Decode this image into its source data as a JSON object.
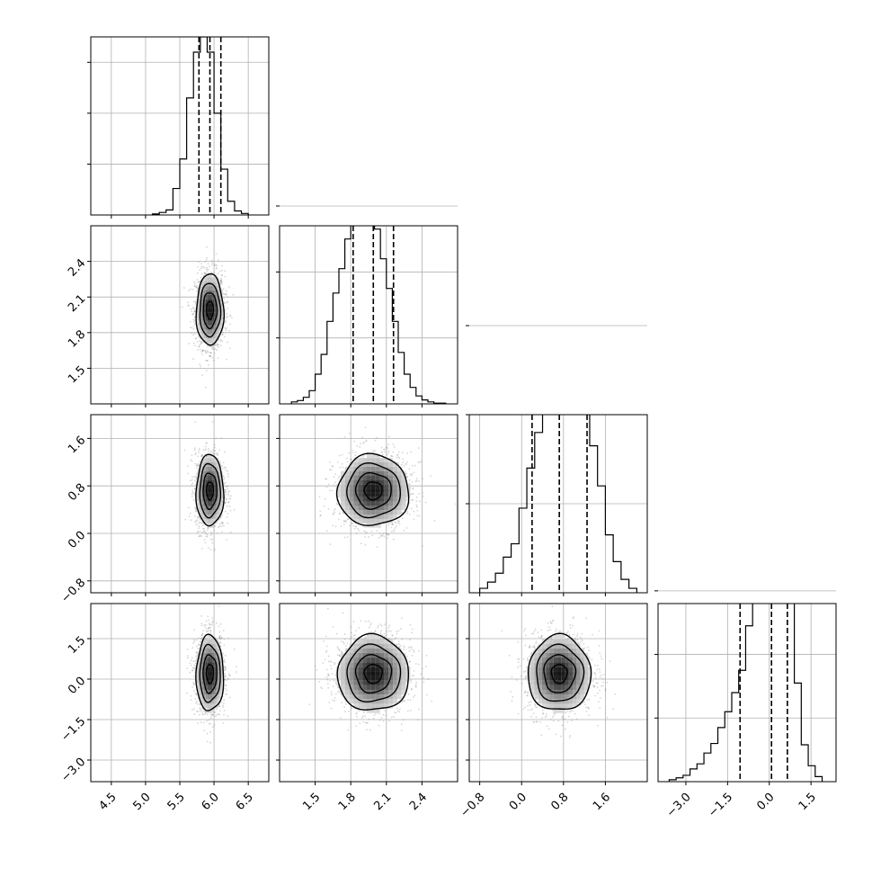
{
  "chart_data": {
    "type": "corner",
    "parameters": [
      {
        "xlim": [
          4.2,
          6.8
        ],
        "ylim": [
          0,
          3.5
        ],
        "ticks": [
          4.5,
          5.0,
          5.5,
          6.0,
          6.5
        ],
        "tick_labels": [
          "4.5",
          "5.0",
          "5.5",
          "6.0",
          "6.5"
        ],
        "hist_yticks": [
          1,
          2,
          3
        ],
        "quantiles": [
          5.78,
          5.94,
          6.1
        ],
        "hist": {
          "edges": [
            5.1,
            5.2,
            5.3,
            5.4,
            5.5,
            5.6,
            5.7,
            5.8,
            5.9,
            6.0,
            6.1,
            6.2,
            6.3,
            6.4,
            6.5
          ],
          "counts": [
            0.02,
            0.05,
            0.1,
            0.52,
            1.1,
            2.3,
            3.2,
            3.5,
            3.2,
            2.0,
            0.9,
            0.27,
            0.08,
            0.03
          ]
        }
      },
      {
        "xlim": [
          1.2,
          2.7
        ],
        "ylim": [
          1.2,
          2.7
        ],
        "ticks": [
          1.5,
          1.8,
          2.1,
          2.4
        ],
        "tick_labels": [
          "1.5",
          "1.8",
          "2.1",
          "2.4"
        ],
        "hist_yticks": [
          1,
          2,
          3
        ],
        "quantiles": [
          1.82,
          1.99,
          2.16
        ],
        "hist": {
          "edges": [
            1.3,
            1.35,
            1.4,
            1.45,
            1.5,
            1.55,
            1.6,
            1.65,
            1.7,
            1.75,
            1.8,
            1.85,
            1.9,
            1.95,
            2.0,
            2.05,
            2.1,
            2.15,
            2.2,
            2.25,
            2.3,
            2.35,
            2.4,
            2.45,
            2.5,
            2.55,
            2.6
          ],
          "counts": [
            0.03,
            0.05,
            0.1,
            0.2,
            0.45,
            0.75,
            1.25,
            1.68,
            2.05,
            2.5,
            2.95,
            3.05,
            3.2,
            2.95,
            2.65,
            2.2,
            1.75,
            1.25,
            0.78,
            0.45,
            0.25,
            0.12,
            0.06,
            0.03,
            0.01,
            0.01
          ]
        }
      },
      {
        "xlim": [
          -1.0,
          2.4
        ],
        "ylim": [
          -1.0,
          2.0
        ],
        "ticks": [
          -0.8,
          0.0,
          0.8,
          1.6
        ],
        "tick_labels": [
          "−0.8",
          "0.0",
          "0.8",
          "1.6"
        ],
        "hist_yticks": [
          1,
          2,
          3
        ],
        "quantiles": [
          0.2,
          0.72,
          1.25
        ],
        "hist": {
          "edges": [
            -0.8,
            -0.65,
            -0.5,
            -0.35,
            -0.2,
            -0.05,
            0.1,
            0.25,
            0.4,
            0.55,
            0.7,
            0.85,
            1.0,
            1.15,
            1.3,
            1.45,
            1.6,
            1.75,
            1.9,
            2.05,
            2.2
          ],
          "counts": [
            0.05,
            0.12,
            0.22,
            0.4,
            0.55,
            0.95,
            1.4,
            1.8,
            2.25,
            2.7,
            2.95,
            3.05,
            2.75,
            2.4,
            1.65,
            1.2,
            0.65,
            0.35,
            0.15,
            0.05
          ]
        }
      },
      {
        "xlim": [
          -4.0,
          2.4
        ],
        "ylim": [
          -3.8,
          2.8
        ],
        "ticks": [
          -3.0,
          -1.5,
          0.0,
          1.5
        ],
        "tick_labels": [
          "−3.0",
          "−1.5",
          "0.0",
          "1.5"
        ],
        "hist_yticks": [
          1,
          2,
          3
        ],
        "quantiles": [
          -1.05,
          0.08,
          0.65
        ],
        "hist": {
          "edges": [
            -3.6,
            -3.35,
            -3.1,
            -2.85,
            -2.6,
            -2.35,
            -2.1,
            -1.85,
            -1.6,
            -1.35,
            -1.1,
            -0.85,
            -0.6,
            -0.35,
            -0.1,
            0.15,
            0.4,
            0.65,
            0.9,
            1.15,
            1.4,
            1.65,
            1.9
          ],
          "counts": [
            0.03,
            0.06,
            0.1,
            0.2,
            0.28,
            0.45,
            0.6,
            0.85,
            1.1,
            1.4,
            1.75,
            2.45,
            2.9,
            3.5,
            3.9,
            4.2,
            4.2,
            3.05,
            1.55,
            0.58,
            0.25,
            0.08
          ]
        }
      }
    ],
    "pairs": [
      {
        "row": 1,
        "col": 0,
        "center": [
          5.94,
          1.99
        ],
        "sigma": [
          0.1,
          0.15
        ],
        "corr": 0.0
      },
      {
        "row": 2,
        "col": 0,
        "center": [
          5.94,
          0.72
        ],
        "sigma": [
          0.1,
          0.3
        ],
        "corr": 0.0
      },
      {
        "row": 2,
        "col": 1,
        "center": [
          1.99,
          0.72
        ],
        "sigma": [
          0.15,
          0.3
        ],
        "corr": 0.05
      },
      {
        "row": 3,
        "col": 0,
        "center": [
          5.94,
          0.2
        ],
        "sigma": [
          0.1,
          0.7
        ],
        "corr": 0.0
      },
      {
        "row": 3,
        "col": 1,
        "center": [
          1.99,
          0.2
        ],
        "sigma": [
          0.15,
          0.7
        ],
        "corr": 0.0
      },
      {
        "row": 3,
        "col": 2,
        "center": [
          0.72,
          0.2
        ],
        "sigma": [
          0.3,
          0.7
        ],
        "corr": 0.0
      }
    ],
    "contour_levels_sigma": [
      0.5,
      1.0,
      1.5,
      2.0
    ],
    "grid": true,
    "legend": "none",
    "title": "",
    "xlabel": "",
    "ylabel": ""
  }
}
